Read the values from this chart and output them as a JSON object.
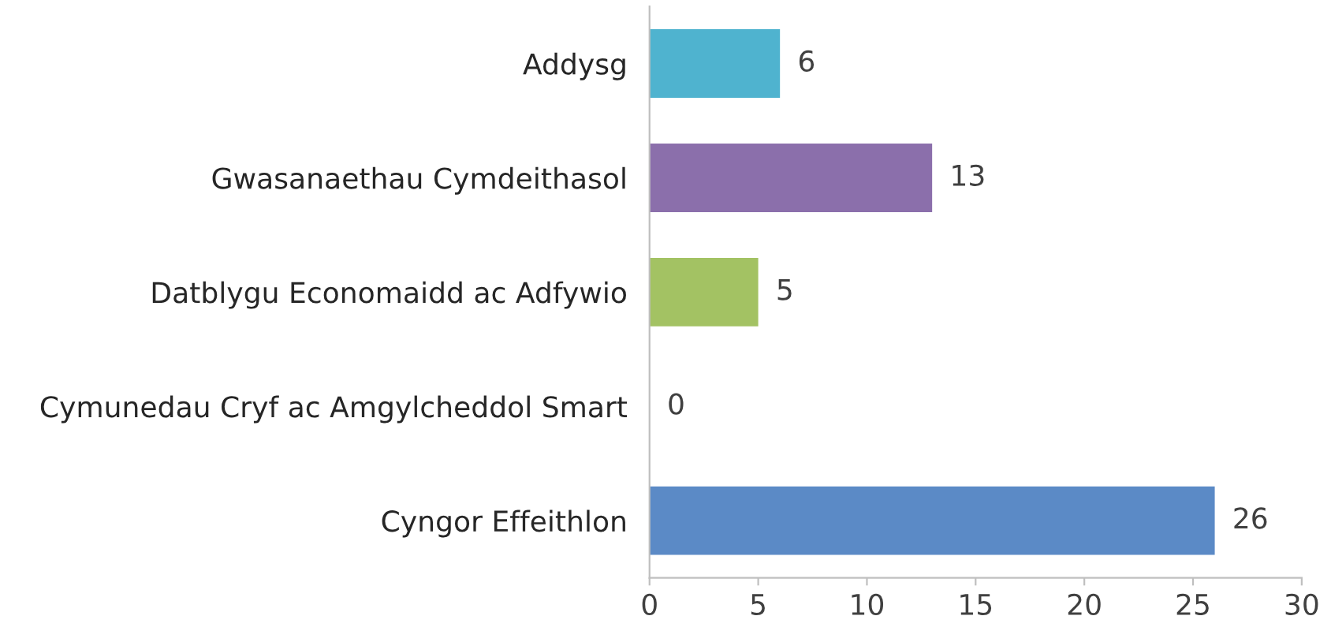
{
  "chart_data": {
    "type": "bar",
    "orientation": "horizontal",
    "categories": [
      "Addysg",
      "Gwasanaethau Cymdeithasol",
      "Datblygu Economaidd ac Adfywio",
      "Cymunedau Cryf ac Amgylcheddol Smart",
      "Cyngor Effeithlon"
    ],
    "values": [
      6,
      13,
      5,
      0,
      26
    ],
    "colors": [
      "#4fb3cf",
      "#8b6fab",
      "#a3c263",
      "#d9d9d9",
      "#5b8ac6"
    ],
    "xlim": [
      0,
      30
    ],
    "xticks": [
      0,
      5,
      10,
      15,
      20,
      25,
      30
    ],
    "data_labels": true,
    "grid": false
  }
}
